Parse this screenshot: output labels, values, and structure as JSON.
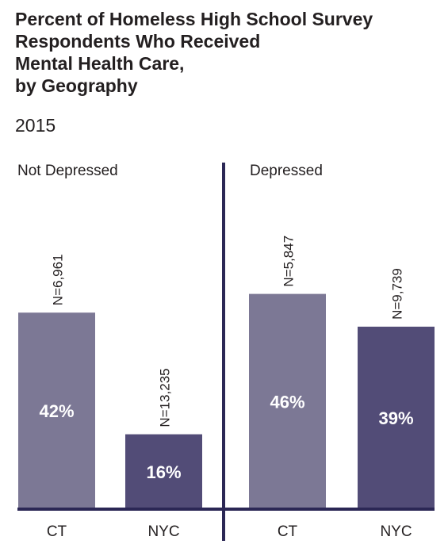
{
  "title_lines": [
    "Percent of Homeless High School Survey",
    "Respondents Who Received",
    "Mental Health Care,",
    "by Geography"
  ],
  "subtitle": "2015",
  "colors": {
    "ct": "#7c7895",
    "nyc": "#524c77",
    "axis": "#2b2755",
    "text": "#231f20",
    "label": "#ffffff"
  },
  "chart_data": {
    "type": "bar",
    "ylim": [
      0,
      100
    ],
    "panels": [
      {
        "name": "Not Depressed",
        "categories": [
          "CT",
          "NYC"
        ],
        "values": [
          42,
          16
        ],
        "value_labels": [
          "42%",
          "16%"
        ],
        "n_labels": [
          "N=6,961",
          "N=13,235"
        ]
      },
      {
        "name": "Depressed",
        "categories": [
          "CT",
          "NYC"
        ],
        "values": [
          46,
          39
        ],
        "value_labels": [
          "46%",
          "39%"
        ],
        "n_labels": [
          "N=5,847",
          "N=9,739"
        ]
      }
    ]
  }
}
